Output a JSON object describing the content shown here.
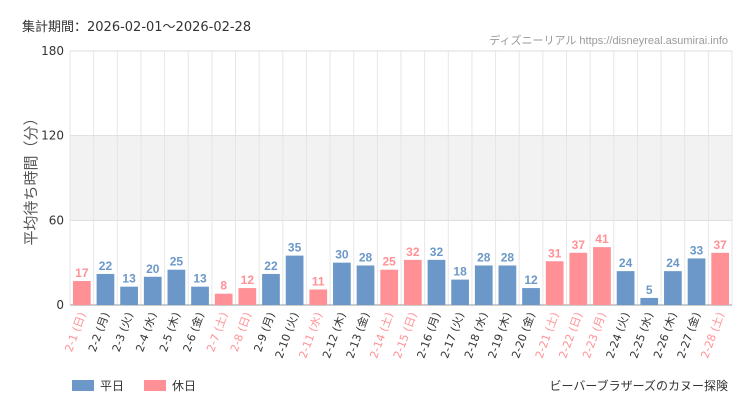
{
  "header": {
    "period": "集計期間：2026-02-01〜2026-02-28",
    "credit": "ディズニーリアル https://disneyreal.asumirai.info"
  },
  "legend": {
    "weekday": "平日",
    "holiday": "休日"
  },
  "footer": {
    "attraction": "ビーバーブラザーズのカヌー探険"
  },
  "colors": {
    "weekday": "#6b98c8",
    "holiday": "#ff9196",
    "band": "#f2f2f2",
    "grid": "#e6e6e6"
  },
  "chart_data": {
    "type": "bar",
    "ylabel": "平均待ち時間（分）",
    "ylim": [
      0,
      180
    ],
    "yticks": [
      0,
      60,
      120,
      180
    ],
    "shaded_band": [
      60,
      120
    ],
    "categories": [
      "2-1 (日)",
      "2-2 (月)",
      "2-3 (火)",
      "2-4 (水)",
      "2-5 (木)",
      "2-6 (金)",
      "2-7 (土)",
      "2-8 (日)",
      "2-9 (月)",
      "2-10 (火)",
      "2-11 (水)",
      "2-12 (木)",
      "2-13 (金)",
      "2-14 (土)",
      "2-15 (日)",
      "2-16 (月)",
      "2-17 (火)",
      "2-18 (水)",
      "2-19 (木)",
      "2-20 (金)",
      "2-21 (土)",
      "2-22 (日)",
      "2-23 (月)",
      "2-24 (火)",
      "2-25 (水)",
      "2-26 (木)",
      "2-27 (金)",
      "2-28 (土)"
    ],
    "values": [
      17,
      22,
      13,
      20,
      25,
      13,
      8,
      12,
      22,
      35,
      11,
      30,
      28,
      25,
      32,
      32,
      18,
      28,
      28,
      12,
      31,
      37,
      41,
      24,
      5,
      24,
      33,
      37
    ],
    "day_type": [
      "休日",
      "平日",
      "平日",
      "平日",
      "平日",
      "平日",
      "休日",
      "休日",
      "平日",
      "平日",
      "休日",
      "平日",
      "平日",
      "休日",
      "休日",
      "平日",
      "平日",
      "平日",
      "平日",
      "平日",
      "休日",
      "休日",
      "休日",
      "平日",
      "平日",
      "平日",
      "平日",
      "休日"
    ],
    "legend_position": "bottom-left",
    "grid": true
  }
}
